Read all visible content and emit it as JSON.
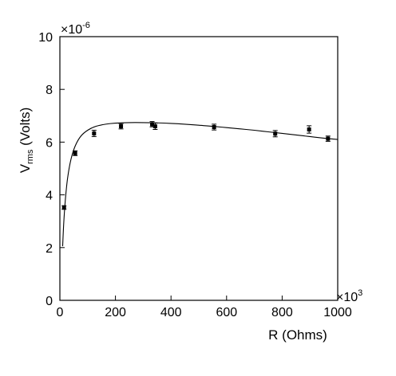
{
  "chart_data": {
    "type": "scatter",
    "xlabel": "R (Ohms)",
    "ylabel": {
      "main": "V",
      "subscript": "rms",
      "rest": " (Volts)"
    },
    "x_multiplier": {
      "base": "×10",
      "exponent": "3"
    },
    "y_multiplier": {
      "base": "×10",
      "exponent": "-6"
    },
    "xlim": [
      0,
      1000
    ],
    "ylim": [
      0,
      10
    ],
    "x_ticks": [
      0,
      200,
      400,
      600,
      800,
      1000
    ],
    "y_ticks": [
      0,
      2,
      4,
      6,
      8,
      10
    ],
    "grid": false,
    "points": [
      {
        "x": 15,
        "y": 3.52,
        "err": 0.07
      },
      {
        "x": 55,
        "y": 5.58,
        "err": 0.09
      },
      {
        "x": 123,
        "y": 6.33,
        "err": 0.12
      },
      {
        "x": 220,
        "y": 6.6,
        "err": 0.1
      },
      {
        "x": 332,
        "y": 6.68,
        "err": 0.1
      },
      {
        "x": 343,
        "y": 6.6,
        "err": 0.12
      },
      {
        "x": 555,
        "y": 6.57,
        "err": 0.11
      },
      {
        "x": 775,
        "y": 6.32,
        "err": 0.12
      },
      {
        "x": 897,
        "y": 6.48,
        "err": 0.14
      },
      {
        "x": 965,
        "y": 6.13,
        "err": 0.1
      }
    ],
    "fit_curve": {
      "x": [
        10,
        14,
        20,
        28,
        40,
        55,
        75,
        100,
        130,
        165,
        200,
        250,
        300,
        350,
        400,
        450,
        500,
        550,
        600,
        650,
        700,
        750,
        800,
        850,
        900,
        950,
        1000
      ],
      "y": [
        2.05,
        2.95,
        3.85,
        4.65,
        5.35,
        5.85,
        6.22,
        6.45,
        6.6,
        6.68,
        6.72,
        6.74,
        6.74,
        6.73,
        6.71,
        6.68,
        6.64,
        6.6,
        6.55,
        6.5,
        6.45,
        6.39,
        6.33,
        6.27,
        6.21,
        6.15,
        6.1
      ]
    }
  }
}
